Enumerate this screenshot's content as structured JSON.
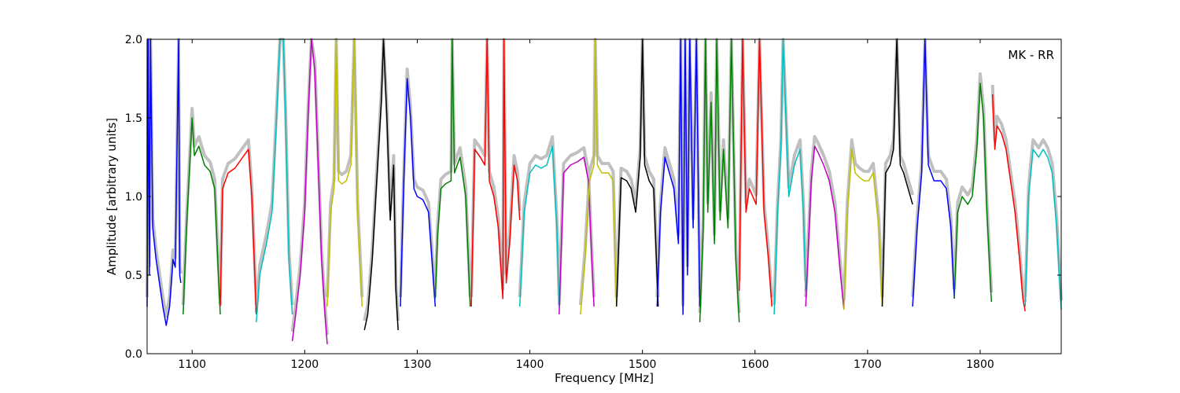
{
  "chart_data": {
    "type": "line",
    "title": "",
    "xlabel": "Frequency [MHz]",
    "ylabel": "Amplitude [arbitrary units]",
    "annotation": "MK - RR",
    "xlim": [
      1060,
      1872
    ],
    "ylim": [
      0.0,
      2.0
    ],
    "xticks": [
      1100,
      1200,
      1300,
      1400,
      1500,
      1600,
      1700,
      1800
    ],
    "xtick_labels": [
      "1100",
      "1200",
      "1300",
      "1400",
      "1500",
      "1600",
      "1700",
      "1800"
    ],
    "yticks": [
      0.0,
      0.5,
      1.0,
      1.5,
      2.0
    ],
    "ytick_labels": [
      "0.0",
      "0.5",
      "1.0",
      "1.5",
      "2.0"
    ],
    "grid": false,
    "legend": "none",
    "background_color": "#c0c0c0",
    "series": [
      {
        "color": "#0000ff",
        "x": [
          1060,
          1061,
          1062,
          1063,
          1065,
          1068,
          1071,
          1074,
          1077,
          1080,
          1083,
          1085,
          1088,
          1089,
          1090
        ],
        "y": [
          0.3,
          2.0,
          0.5,
          2.0,
          0.8,
          0.6,
          0.45,
          0.3,
          0.18,
          0.3,
          0.6,
          0.55,
          2.0,
          0.5,
          0.45
        ]
      },
      {
        "color": "#008000",
        "x": [
          1092,
          1095,
          1100,
          1102,
          1106,
          1111,
          1116,
          1120,
          1123,
          1125
        ],
        "y": [
          0.25,
          0.8,
          1.5,
          1.26,
          1.32,
          1.2,
          1.16,
          1.05,
          0.55,
          0.25
        ]
      },
      {
        "color": "#ff0000",
        "x": [
          1125,
          1127,
          1132,
          1138,
          1145,
          1150,
          1153,
          1157
        ],
        "y": [
          0.3,
          1.05,
          1.15,
          1.18,
          1.25,
          1.3,
          1.0,
          0.25
        ]
      },
      {
        "color": "#00bfbf",
        "x": [
          1157,
          1160,
          1166,
          1171,
          1175,
          1178,
          1181,
          1183,
          1186,
          1189
        ],
        "y": [
          0.2,
          0.5,
          0.7,
          0.9,
          1.5,
          2.0,
          2.0,
          1.5,
          0.6,
          0.25
        ]
      },
      {
        "color": "#bf00bf",
        "x": [
          1189,
          1192,
          1196,
          1200,
          1203,
          1206,
          1209,
          1212,
          1215,
          1218,
          1220
        ],
        "y": [
          0.08,
          0.25,
          0.5,
          0.9,
          1.5,
          2.0,
          1.8,
          1.2,
          0.6,
          0.25,
          0.06
        ]
      },
      {
        "color": "#bfbf00",
        "x": [
          1220,
          1223,
          1226,
          1228,
          1230,
          1233,
          1237,
          1241,
          1244,
          1247,
          1251
        ],
        "y": [
          0.3,
          0.9,
          1.05,
          2.0,
          1.1,
          1.08,
          1.1,
          1.2,
          2.0,
          0.9,
          0.3
        ]
      },
      {
        "color": "#000000",
        "x": [
          1253,
          1256,
          1260,
          1264,
          1268,
          1270,
          1273,
          1276,
          1279,
          1281,
          1283
        ],
        "y": [
          0.15,
          0.25,
          0.6,
          1.1,
          1.6,
          2.0,
          1.5,
          0.85,
          1.2,
          0.4,
          0.15
        ]
      },
      {
        "color": "#0000ff",
        "x": [
          1285,
          1288,
          1291,
          1294,
          1297,
          1300,
          1305,
          1310,
          1313,
          1316
        ],
        "y": [
          0.3,
          1.1,
          1.75,
          1.5,
          1.05,
          1.0,
          0.98,
          0.9,
          0.6,
          0.3
        ]
      },
      {
        "color": "#008000",
        "x": [
          1316,
          1318,
          1321,
          1325,
          1330,
          1331,
          1333,
          1338,
          1343,
          1347
        ],
        "y": [
          0.35,
          0.75,
          1.05,
          1.08,
          1.1,
          2.0,
          1.15,
          1.25,
          1.0,
          0.3
        ]
      },
      {
        "color": "#ff0000",
        "x": [
          1348,
          1351,
          1356,
          1360,
          1362,
          1364,
          1368,
          1372,
          1376,
          1377,
          1379,
          1382,
          1386,
          1389,
          1391
        ],
        "y": [
          0.3,
          1.3,
          1.25,
          1.2,
          2.0,
          1.1,
          1.0,
          0.8,
          0.35,
          2.0,
          0.45,
          0.7,
          1.2,
          1.1,
          0.85
        ]
      },
      {
        "color": "#00bfbf",
        "x": [
          1391,
          1395,
          1400,
          1405,
          1410,
          1415,
          1420,
          1424,
          1426
        ],
        "y": [
          0.3,
          0.9,
          1.15,
          1.2,
          1.18,
          1.2,
          1.32,
          0.8,
          0.3
        ]
      },
      {
        "color": "#bf00bf",
        "x": [
          1426,
          1430,
          1436,
          1442,
          1448,
          1452,
          1455,
          1457
        ],
        "y": [
          0.25,
          1.15,
          1.2,
          1.22,
          1.25,
          1.1,
          0.6,
          0.3
        ]
      },
      {
        "color": "#bfbf00",
        "x": [
          1445,
          1449,
          1453,
          1457,
          1458,
          1460,
          1464,
          1470,
          1474,
          1477
        ],
        "y": [
          0.25,
          0.6,
          1.1,
          1.2,
          2.0,
          1.2,
          1.15,
          1.15,
          1.1,
          0.3
        ]
      },
      {
        "color": "#000000",
        "x": [
          1477,
          1481,
          1486,
          1490,
          1494,
          1498,
          1500,
          1502,
          1506,
          1510,
          1514
        ],
        "y": [
          0.3,
          1.12,
          1.1,
          1.05,
          0.9,
          1.25,
          2.0,
          1.2,
          1.1,
          1.05,
          0.3
        ]
      },
      {
        "color": "#0000ff",
        "x": [
          1513,
          1516,
          1520,
          1524,
          1528,
          1532,
          1534,
          1536,
          1538,
          1540,
          1542,
          1545,
          1548,
          1551
        ],
        "y": [
          0.3,
          0.9,
          1.25,
          1.15,
          1.05,
          0.7,
          2.0,
          0.25,
          2.0,
          0.5,
          2.0,
          0.8,
          2.0,
          0.3
        ]
      },
      {
        "color": "#008000",
        "x": [
          1551,
          1554,
          1556,
          1558,
          1561,
          1564,
          1566,
          1569,
          1572,
          1576,
          1579,
          1583,
          1586
        ],
        "y": [
          0.2,
          0.8,
          2.0,
          0.9,
          1.6,
          0.7,
          2.0,
          0.85,
          1.3,
          0.8,
          2.0,
          0.6,
          0.2
        ]
      },
      {
        "color": "#ff0000",
        "x": [
          1586,
          1589,
          1592,
          1595,
          1598,
          1601,
          1604,
          1608,
          1612,
          1615
        ],
        "y": [
          0.4,
          2.0,
          0.9,
          1.05,
          1.0,
          0.95,
          2.0,
          0.9,
          0.6,
          0.3
        ]
      },
      {
        "color": "#00bfbf",
        "x": [
          1617,
          1620,
          1623,
          1625,
          1630,
          1635,
          1640,
          1643,
          1645
        ],
        "y": [
          0.25,
          0.9,
          1.3,
          2.0,
          1.0,
          1.2,
          1.3,
          0.9,
          0.4
        ]
      },
      {
        "color": "#bf00bf",
        "x": [
          1645,
          1650,
          1653,
          1656,
          1661,
          1666,
          1671,
          1676,
          1679
        ],
        "y": [
          0.3,
          1.1,
          1.32,
          1.28,
          1.2,
          1.1,
          0.9,
          0.5,
          0.28
        ]
      },
      {
        "color": "#bfbf00",
        "x": [
          1679,
          1682,
          1686,
          1689,
          1693,
          1697,
          1701,
          1705,
          1710,
          1713
        ],
        "y": [
          0.28,
          0.9,
          1.3,
          1.15,
          1.12,
          1.1,
          1.1,
          1.15,
          0.8,
          0.3
        ]
      },
      {
        "color": "#000000",
        "x": [
          1713,
          1716,
          1720,
          1723,
          1726,
          1729,
          1732,
          1736,
          1740
        ],
        "y": [
          0.3,
          1.15,
          1.2,
          1.3,
          2.0,
          1.2,
          1.15,
          1.05,
          0.95
        ]
      },
      {
        "color": "#0000ff",
        "x": [
          1740,
          1744,
          1748,
          1751,
          1754,
          1759,
          1765,
          1770,
          1774,
          1777
        ],
        "y": [
          0.3,
          0.8,
          1.15,
          2.0,
          1.2,
          1.1,
          1.1,
          1.05,
          0.8,
          0.35
        ]
      },
      {
        "color": "#008000",
        "x": [
          1777,
          1780,
          1784,
          1789,
          1793,
          1797,
          1800,
          1803,
          1806,
          1810
        ],
        "y": [
          0.35,
          0.9,
          1.0,
          0.95,
          1.0,
          1.3,
          1.72,
          1.5,
          0.9,
          0.33
        ]
      },
      {
        "color": "#ff0000",
        "x": [
          1811,
          1813,
          1815,
          1819,
          1823,
          1827,
          1831,
          1835,
          1838,
          1840
        ],
        "y": [
          1.65,
          1.3,
          1.45,
          1.4,
          1.3,
          1.1,
          0.9,
          0.6,
          0.35,
          0.27
        ]
      },
      {
        "color": "#00bfbf",
        "x": [
          1840,
          1843,
          1847,
          1852,
          1856,
          1860,
          1864,
          1868,
          1872
        ],
        "y": [
          0.3,
          1.0,
          1.3,
          1.25,
          1.3,
          1.25,
          1.15,
          0.8,
          0.28
        ]
      }
    ]
  }
}
